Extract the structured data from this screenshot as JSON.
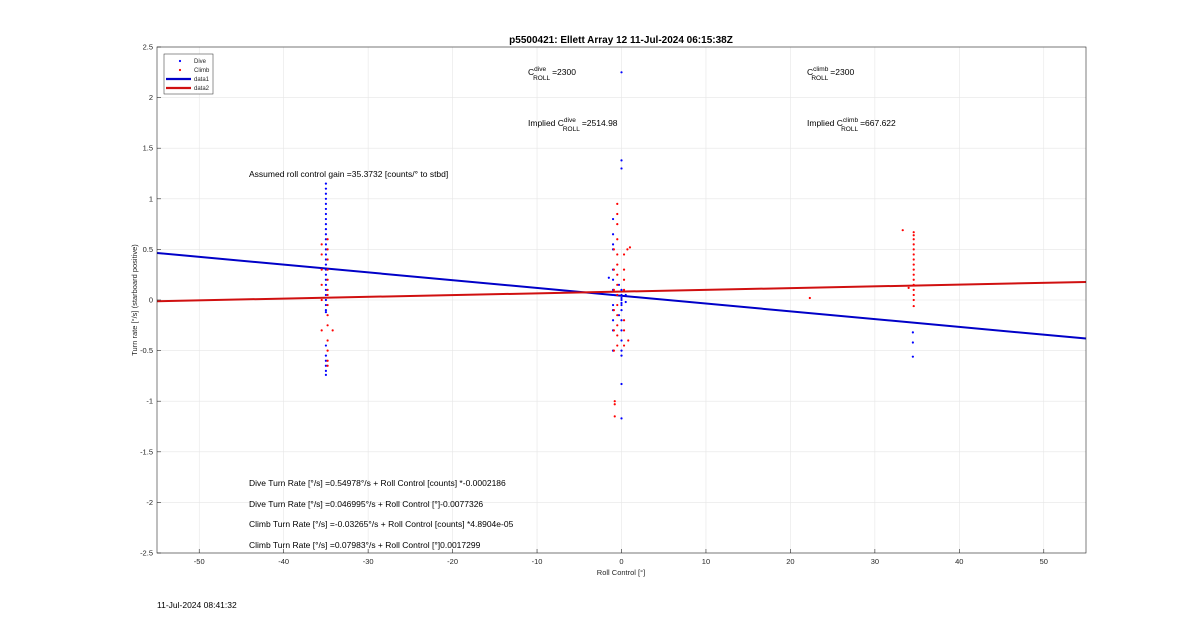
{
  "chart_data": {
    "type": "scatter",
    "title": "p5500421: Ellett Array 12 11-Jul-2024 06:15:38Z",
    "xlabel": "Roll Control [°]",
    "ylabel": "Turn rate [°/s] (starboard positive)",
    "xlim": [
      -55,
      55
    ],
    "ylim": [
      -2.5,
      2.5
    ],
    "xticks": [
      -50,
      -40,
      -30,
      -20,
      -10,
      0,
      10,
      20,
      30,
      40,
      50
    ],
    "yticks": [
      -2.5,
      -2,
      -1.5,
      -1,
      -0.5,
      0,
      0.5,
      1,
      1.5,
      2,
      2.5
    ],
    "xtick_labels": [
      "-50",
      "-40",
      "-30",
      "-20",
      "-10",
      "0",
      "10",
      "20",
      "30",
      "40",
      "50"
    ],
    "ytick_labels": [
      "-2.5",
      "-2",
      "-1.5",
      "-1",
      "-0.5",
      "0",
      "0.5",
      "1",
      "1.5",
      "2",
      "2.5"
    ],
    "grid": true,
    "legend_placement": "top-left",
    "legend": [
      {
        "label": "Dive",
        "kind": "marker",
        "color": "#0000ff"
      },
      {
        "label": "Climb",
        "kind": "marker",
        "color": "#ff0000"
      },
      {
        "label": "data1",
        "kind": "line",
        "color": "#0000c8"
      },
      {
        "label": "data2",
        "kind": "line",
        "color": "#d01010"
      }
    ],
    "series": [
      {
        "name": "Dive",
        "kind": "scatter",
        "color": "#0000ff",
        "points": [
          [
            -35,
            1.15
          ],
          [
            -35,
            1.1
          ],
          [
            -35,
            1.05
          ],
          [
            -35,
            1.0
          ],
          [
            -35,
            0.95
          ],
          [
            -35,
            0.9
          ],
          [
            -35,
            0.85
          ],
          [
            -35,
            0.8
          ],
          [
            -35,
            0.75
          ],
          [
            -35,
            0.7
          ],
          [
            -35,
            0.65
          ],
          [
            -35,
            0.6
          ],
          [
            -35,
            0.55
          ],
          [
            -35,
            0.5
          ],
          [
            -35,
            0.45
          ],
          [
            -35,
            0.4
          ],
          [
            -35,
            0.35
          ],
          [
            -35,
            0.3
          ],
          [
            -35,
            0.25
          ],
          [
            -35,
            0.2
          ],
          [
            -35,
            0.15
          ],
          [
            -35,
            0.1
          ],
          [
            -35,
            0.05
          ],
          [
            -35,
            0.0
          ],
          [
            -35,
            -0.05
          ],
          [
            -35,
            -0.1
          ],
          [
            -35,
            -0.12
          ],
          [
            -35,
            -0.45
          ],
          [
            -35,
            -0.55
          ],
          [
            -35,
            -0.6
          ],
          [
            -35,
            -0.65
          ],
          [
            -35,
            -0.7
          ],
          [
            -35,
            -0.74
          ],
          [
            0,
            2.25
          ],
          [
            0,
            1.38
          ],
          [
            0,
            1.3
          ],
          [
            0,
            0.1
          ],
          [
            0,
            0.05
          ],
          [
            0,
            0.02
          ],
          [
            0,
            0.0
          ],
          [
            0,
            -0.03
          ],
          [
            0,
            -0.05
          ],
          [
            0,
            -0.1
          ],
          [
            0,
            -0.2
          ],
          [
            0,
            -0.3
          ],
          [
            0,
            -0.4
          ],
          [
            0,
            -0.5
          ],
          [
            0,
            -0.55
          ],
          [
            0,
            -0.83
          ],
          [
            0,
            -1.17
          ],
          [
            -1,
            0.8
          ],
          [
            -1,
            0.65
          ],
          [
            -1,
            0.55
          ],
          [
            -1,
            0.5
          ],
          [
            -1,
            0.3
          ],
          [
            -1,
            0.2
          ],
          [
            -1,
            0.1
          ],
          [
            -1,
            0.05
          ],
          [
            -1,
            -0.05
          ],
          [
            -1,
            -0.1
          ],
          [
            -1,
            -0.2
          ],
          [
            -1,
            -0.3
          ],
          [
            -1,
            -0.5
          ],
          [
            0.5,
            0.05
          ],
          [
            0.5,
            -0.02
          ],
          [
            -0.3,
            0.15
          ],
          [
            -0.3,
            -0.15
          ],
          [
            -1.5,
            0.22
          ],
          [
            34.5,
            -0.32
          ],
          [
            34.5,
            -0.42
          ],
          [
            34.5,
            -0.56
          ]
        ]
      },
      {
        "name": "Climb",
        "kind": "scatter",
        "color": "#ff0000",
        "points": [
          [
            -34.8,
            0.6
          ],
          [
            -34.8,
            0.5
          ],
          [
            -34.8,
            0.4
          ],
          [
            -34.8,
            0.3
          ],
          [
            -34.8,
            0.2
          ],
          [
            -34.8,
            0.1
          ],
          [
            -34.8,
            0.05
          ],
          [
            -34.8,
            -0.05
          ],
          [
            -34.8,
            -0.15
          ],
          [
            -34.8,
            -0.25
          ],
          [
            -34.8,
            -0.4
          ],
          [
            -34.8,
            -0.5
          ],
          [
            -34.8,
            -0.6
          ],
          [
            -34.8,
            -0.65
          ],
          [
            -35.5,
            0.55
          ],
          [
            -35.5,
            0.45
          ],
          [
            -35.5,
            0.3
          ],
          [
            -35.5,
            0.15
          ],
          [
            -35.5,
            0.0
          ],
          [
            -35.5,
            -0.3
          ],
          [
            -34.2,
            -0.3
          ],
          [
            -0.5,
            0.95
          ],
          [
            -0.5,
            0.85
          ],
          [
            -0.5,
            0.75
          ],
          [
            -0.5,
            0.6
          ],
          [
            -0.5,
            0.45
          ],
          [
            -0.5,
            0.35
          ],
          [
            -0.5,
            0.25
          ],
          [
            -0.5,
            0.15
          ],
          [
            -0.5,
            0.05
          ],
          [
            -0.5,
            -0.05
          ],
          [
            -0.5,
            -0.15
          ],
          [
            -0.5,
            -0.25
          ],
          [
            -0.5,
            -0.35
          ],
          [
            -0.5,
            -0.45
          ],
          [
            -0.9,
            0.5
          ],
          [
            -0.9,
            0.3
          ],
          [
            -0.9,
            0.1
          ],
          [
            -0.9,
            -0.1
          ],
          [
            -0.9,
            -0.3
          ],
          [
            -0.9,
            -0.5
          ],
          [
            0.3,
            0.45
          ],
          [
            0.3,
            0.3
          ],
          [
            0.3,
            0.2
          ],
          [
            0.3,
            0.1
          ],
          [
            0.3,
            -0.2
          ],
          [
            0.3,
            -0.3
          ],
          [
            0.3,
            -0.45
          ],
          [
            -0.8,
            -1.0
          ],
          [
            -0.8,
            -1.03
          ],
          [
            -0.8,
            -1.15
          ],
          [
            0.7,
            0.5
          ],
          [
            0.8,
            -0.4
          ],
          [
            1.0,
            0.52
          ],
          [
            22.3,
            0.02
          ],
          [
            33.3,
            0.69
          ],
          [
            34.0,
            0.12
          ],
          [
            34.6,
            0.67
          ],
          [
            34.6,
            0.64
          ],
          [
            34.6,
            0.6
          ],
          [
            34.6,
            0.55
          ],
          [
            34.6,
            0.5
          ],
          [
            34.6,
            0.45
          ],
          [
            34.6,
            0.4
          ],
          [
            34.6,
            0.35
          ],
          [
            34.6,
            0.3
          ],
          [
            34.6,
            0.25
          ],
          [
            34.6,
            0.2
          ],
          [
            34.6,
            0.15
          ],
          [
            34.6,
            0.1
          ],
          [
            34.6,
            0.05
          ],
          [
            34.6,
            0.0
          ],
          [
            34.6,
            -0.06
          ]
        ]
      },
      {
        "name": "data1",
        "kind": "line",
        "color": "#0000c8",
        "x": [
          -55,
          55
        ],
        "y": [
          0.465,
          -0.381
        ]
      },
      {
        "name": "data2",
        "kind": "line",
        "color": "#d01010",
        "x": [
          -55,
          55
        ],
        "y": [
          -0.012,
          0.178
        ]
      }
    ],
    "annotations": {
      "c_roll_dive": {
        "prefix": "C",
        "sup": "dive",
        "sub": "ROLL",
        "suffix": "=2300"
      },
      "c_roll_climb": {
        "prefix": "C",
        "sup": "climb",
        "sub": "ROLL",
        "suffix": "=2300"
      },
      "implied_dive": {
        "prefix": "Implied C",
        "sup": "dive",
        "sub": "ROLL",
        "suffix": "=2514.98"
      },
      "implied_climb": {
        "prefix": "Implied C",
        "sup": "climb",
        "sub": "ROLL",
        "suffix": "=667.622"
      },
      "gain": "Assumed roll control gain =35.3732 [counts/° to stbd]",
      "fit_lines": [
        "Dive Turn Rate [°/s] =0.54978°/s + Roll Control [counts] *-0.0002186",
        "Dive Turn Rate [°/s] =0.046995°/s + Roll Control [°]-0.0077326",
        "Climb Turn Rate [°/s] =-0.03265°/s + Roll Control [counts] *4.8904e-05",
        "Climb Turn Rate [°/s] =0.07983°/s + Roll Control [°]0.0017299"
      ]
    }
  },
  "timestamp": "11-Jul-2024 08:41:32"
}
